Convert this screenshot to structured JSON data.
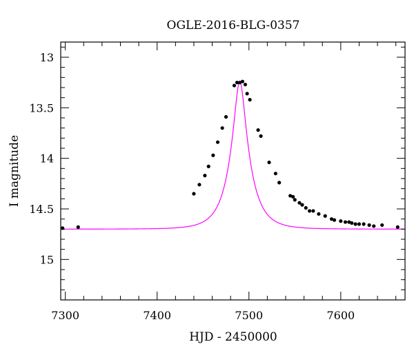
{
  "chart_data": {
    "type": "scatter",
    "title": "OGLE-2016-BLG-0357",
    "xlabel": "HJD - 2450000",
    "ylabel": "I magnitude",
    "xlim": [
      7295,
      7670
    ],
    "ylim": [
      15.4,
      12.85
    ],
    "y_inverted": true,
    "x_ticks": [
      7300,
      7400,
      7500,
      7600
    ],
    "y_ticks": [
      13,
      13.5,
      14,
      14.5,
      15
    ],
    "x_tick_labels": [
      "7300",
      "7400",
      "7500",
      "7600"
    ],
    "y_tick_labels": [
      "13",
      "13.5",
      "14",
      "14.5",
      "15"
    ],
    "grid": false,
    "colors": {
      "model": "#ff00ff",
      "points": "#000000"
    },
    "model": {
      "name": "",
      "type": "line",
      "baseline_mag": 14.7,
      "peak_mag": 13.24,
      "t0": 7490,
      "tE": 21
    },
    "series": [
      {
        "name": "",
        "type": "scatter",
        "points": [
          [
            7297,
            14.69
          ],
          [
            7314,
            14.68
          ],
          [
            7440,
            14.35
          ],
          [
            7446,
            14.26
          ],
          [
            7452,
            14.17
          ],
          [
            7456,
            14.08
          ],
          [
            7461,
            13.97
          ],
          [
            7466,
            13.84
          ],
          [
            7471,
            13.7
          ],
          [
            7475,
            13.59
          ],
          [
            7484,
            13.28
          ],
          [
            7487,
            13.25
          ],
          [
            7490,
            13.25
          ],
          [
            7493,
            13.24
          ],
          [
            7496,
            13.27
          ],
          [
            7498,
            13.36
          ],
          [
            7501,
            13.42
          ],
          [
            7510,
            13.72
          ],
          [
            7513,
            13.78
          ],
          [
            7522,
            14.04
          ],
          [
            7529,
            14.15
          ],
          [
            7533,
            14.24
          ],
          [
            7545,
            14.37
          ],
          [
            7548,
            14.38
          ],
          [
            7550,
            14.41
          ],
          [
            7555,
            14.44
          ],
          [
            7558,
            14.46
          ],
          [
            7562,
            14.49
          ],
          [
            7566,
            14.52
          ],
          [
            7570,
            14.52
          ],
          [
            7576,
            14.55
          ],
          [
            7583,
            14.57
          ],
          [
            7590,
            14.6
          ],
          [
            7593,
            14.61
          ],
          [
            7600,
            14.62
          ],
          [
            7605,
            14.63
          ],
          [
            7609,
            14.63
          ],
          [
            7612,
            14.64
          ],
          [
            7616,
            14.65
          ],
          [
            7620,
            14.65
          ],
          [
            7625,
            14.65
          ],
          [
            7631,
            14.66
          ],
          [
            7636,
            14.67
          ],
          [
            7645,
            14.66
          ],
          [
            7662,
            14.68
          ]
        ]
      }
    ]
  }
}
